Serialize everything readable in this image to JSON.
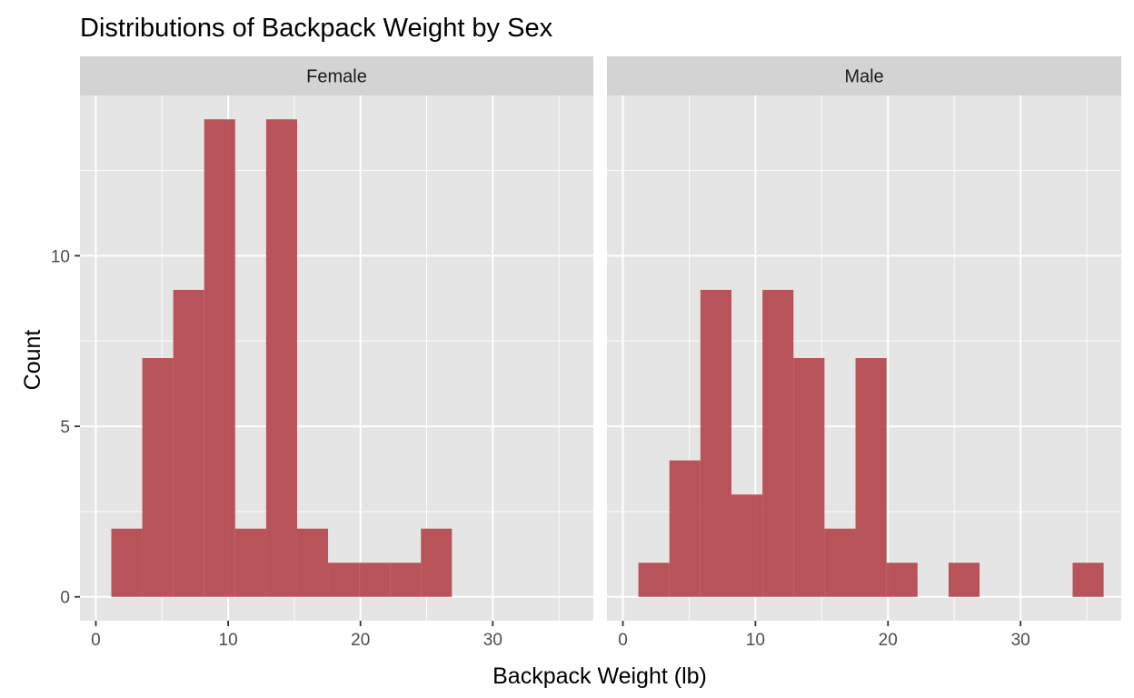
{
  "chart_data": {
    "type": "bar",
    "title": "Distributions of Backpack Weight by Sex",
    "xlabel": "Backpack Weight (lb)",
    "ylabel": "Count",
    "xlim": [
      -1.2,
      37.6
    ],
    "ylim": [
      -0.7,
      14.7
    ],
    "x_ticks": [
      "0",
      "10",
      "20",
      "30"
    ],
    "x_tick_values": [
      0,
      10,
      20,
      30
    ],
    "y_ticks": [
      "0",
      "5",
      "10"
    ],
    "y_tick_values": [
      0,
      5,
      10
    ],
    "bin_width": 2.34,
    "grid": true,
    "panels": [
      {
        "label": "Female",
        "bins": [
          {
            "x": 2.34,
            "count": 2
          },
          {
            "x": 4.68,
            "count": 7
          },
          {
            "x": 7.02,
            "count": 9
          },
          {
            "x": 9.36,
            "count": 14
          },
          {
            "x": 11.7,
            "count": 2
          },
          {
            "x": 14.04,
            "count": 14
          },
          {
            "x": 16.38,
            "count": 2
          },
          {
            "x": 18.72,
            "count": 1
          },
          {
            "x": 21.06,
            "count": 1
          },
          {
            "x": 23.4,
            "count": 1
          },
          {
            "x": 25.74,
            "count": 2
          },
          {
            "x": 28.08,
            "count": 0
          },
          {
            "x": 30.42,
            "count": 0
          },
          {
            "x": 32.76,
            "count": 0
          },
          {
            "x": 35.1,
            "count": 0
          }
        ]
      },
      {
        "label": "Male",
        "bins": [
          {
            "x": 2.34,
            "count": 1
          },
          {
            "x": 4.68,
            "count": 4
          },
          {
            "x": 7.02,
            "count": 9
          },
          {
            "x": 9.36,
            "count": 3
          },
          {
            "x": 11.7,
            "count": 9
          },
          {
            "x": 14.04,
            "count": 7
          },
          {
            "x": 16.38,
            "count": 2
          },
          {
            "x": 18.72,
            "count": 7
          },
          {
            "x": 21.06,
            "count": 1
          },
          {
            "x": 23.4,
            "count": 0
          },
          {
            "x": 25.74,
            "count": 1
          },
          {
            "x": 28.08,
            "count": 0
          },
          {
            "x": 30.42,
            "count": 0
          },
          {
            "x": 32.76,
            "count": 0
          },
          {
            "x": 35.1,
            "count": 1
          }
        ]
      }
    ],
    "colors": {
      "bar": "#b5474e",
      "panel_bg": "#e5e5e5",
      "strip_bg": "#d3d3d3",
      "grid": "#ffffff",
      "tick": "#333333"
    }
  }
}
